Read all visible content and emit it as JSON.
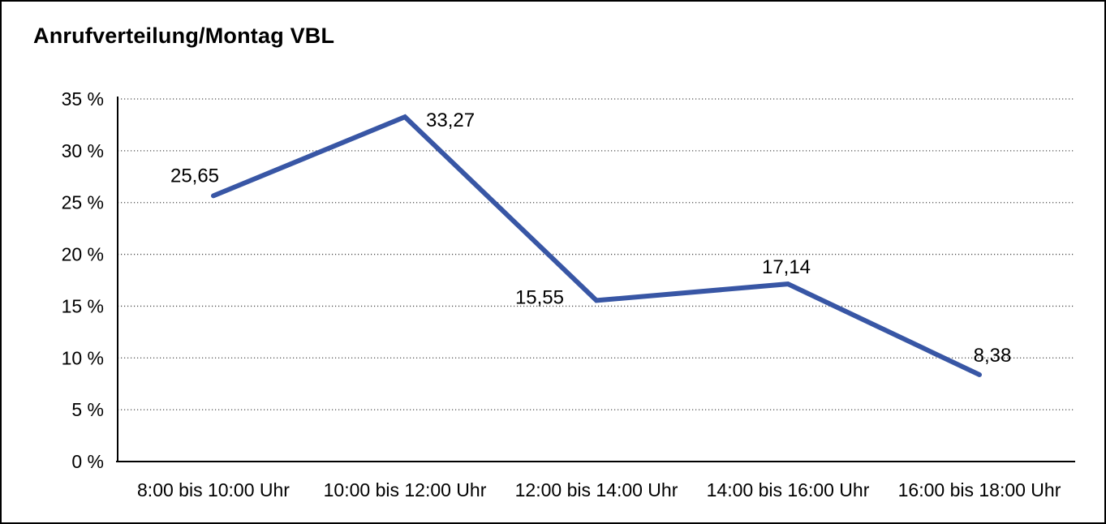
{
  "chart_data": {
    "type": "line",
    "title": "Anrufverteilung/Montag VBL",
    "categories": [
      "8:00 bis 10:00 Uhr",
      "10:00 bis 12:00 Uhr",
      "12:00 bis 14:00 Uhr",
      "14:00 bis 16:00 Uhr",
      "16:00 bis 18:00 Uhr"
    ],
    "values": [
      25.65,
      33.27,
      15.55,
      17.14,
      8.38
    ],
    "value_labels": [
      "25,65",
      "33,27",
      "15,55",
      "17,14",
      "8,38"
    ],
    "xlabel": "",
    "ylabel": "",
    "ylim": [
      0,
      35
    ],
    "ytick_step": 5,
    "ytick_labels": [
      "0 %",
      "5 %",
      "10 %",
      "15 %",
      "20 %",
      "25 %",
      "30 %",
      "35 %"
    ],
    "grid": "horizontal-dotted",
    "legend": "none",
    "line_color": "#3856A5",
    "grid_color": "#4d4d4d",
    "axis_color": "#000000"
  }
}
